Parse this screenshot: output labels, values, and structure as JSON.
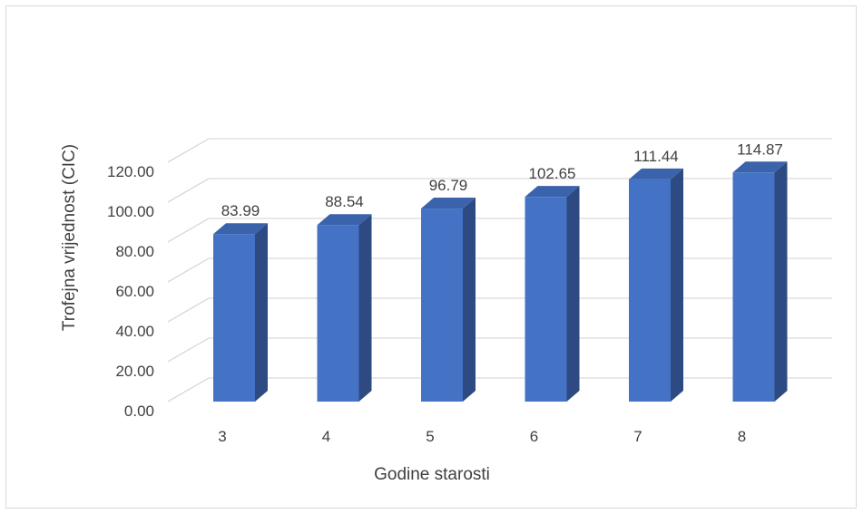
{
  "chart_data": {
    "type": "bar",
    "style": "3d-column",
    "categories": [
      "3",
      "4",
      "5",
      "6",
      "7",
      "8"
    ],
    "values": [
      83.99,
      88.54,
      96.79,
      102.65,
      111.44,
      114.87
    ],
    "value_labels": [
      "83.99",
      "88.54",
      "96.79",
      "102.65",
      "111.44",
      "114.87"
    ],
    "y_ticks": [
      "0.00",
      "20.00",
      "40.00",
      "60.00",
      "80.00",
      "100.00",
      "120.00"
    ],
    "y_tick_values": [
      0,
      20,
      40,
      60,
      80,
      100,
      120
    ],
    "ylim": [
      0,
      120
    ],
    "xlabel": "Godine starosti",
    "ylabel": "Trofejna vrijednost (CIC)",
    "grid": true,
    "legend": "none",
    "colors": {
      "bar_front": "#4472c4",
      "bar_side": "#2d4b82",
      "bar_top": "#3a63ab",
      "grid": "#d9d9d9",
      "text": "#404040"
    }
  }
}
